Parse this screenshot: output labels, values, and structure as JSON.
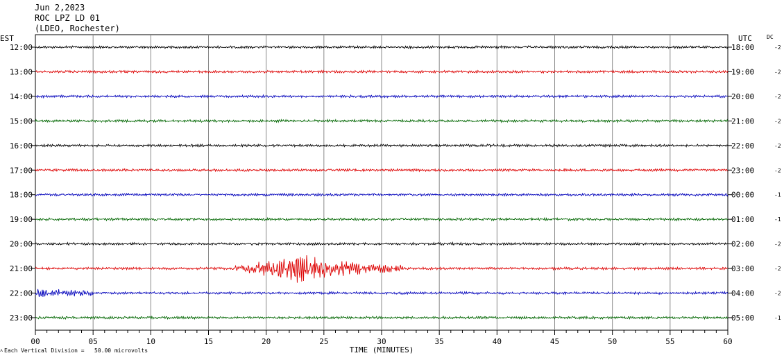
{
  "header": {
    "date": "Jun 2,2023",
    "station": "ROC LPZ LD 01",
    "network": "(LDEO, Rochester)"
  },
  "left_axis_title": "EST",
  "right_axis_title": "UTC",
  "dc_title": "DC",
  "scale_note": "Each Vertical Division =   50.00 microvolts",
  "chart_data": {
    "type": "line",
    "title": "ROC LPZ LD 01",
    "xlabel": "TIME (MINUTES)",
    "xlim": [
      0,
      60
    ],
    "x_ticks": [
      "00",
      "05",
      "10",
      "15",
      "20",
      "25",
      "30",
      "35",
      "40",
      "45",
      "50",
      "55",
      "60"
    ],
    "grid": true,
    "trace_colors": [
      "#000000",
      "#dd0000",
      "#0000bb",
      "#006600"
    ],
    "rows": [
      {
        "est": "12:00",
        "utc": "18:00",
        "dc": "-2",
        "color": "#000000"
      },
      {
        "est": "13:00",
        "utc": "19:00",
        "dc": "-2",
        "color": "#dd0000"
      },
      {
        "est": "14:00",
        "utc": "20:00",
        "dc": "-2",
        "color": "#0000bb"
      },
      {
        "est": "15:00",
        "utc": "21:00",
        "dc": "-2",
        "color": "#006600"
      },
      {
        "est": "16:00",
        "utc": "22:00",
        "dc": "-2",
        "color": "#000000"
      },
      {
        "est": "17:00",
        "utc": "23:00",
        "dc": "-2",
        "color": "#dd0000"
      },
      {
        "est": "18:00",
        "utc": "00:00",
        "dc": "-1",
        "color": "#0000bb"
      },
      {
        "est": "19:00",
        "utc": "01:00",
        "dc": "-1",
        "color": "#006600"
      },
      {
        "est": "20:00",
        "utc": "02:00",
        "dc": "-2",
        "color": "#000000"
      },
      {
        "est": "21:00",
        "utc": "03:00",
        "dc": "-2",
        "color": "#dd0000"
      },
      {
        "est": "22:00",
        "utc": "04:00",
        "dc": "-2",
        "color": "#0000bb"
      },
      {
        "est": "23:00",
        "utc": "05:00",
        "dc": "-1",
        "color": "#006600"
      }
    ],
    "events": [
      {
        "row_est": "21:00",
        "start_min": 17,
        "end_min": 32,
        "peak_min": 22.5,
        "description": "earthquake signal"
      },
      {
        "row_est": "22:00",
        "start_min": 0,
        "end_min": 5,
        "peak_min": 0.5,
        "description": "elevated noise"
      }
    ]
  }
}
